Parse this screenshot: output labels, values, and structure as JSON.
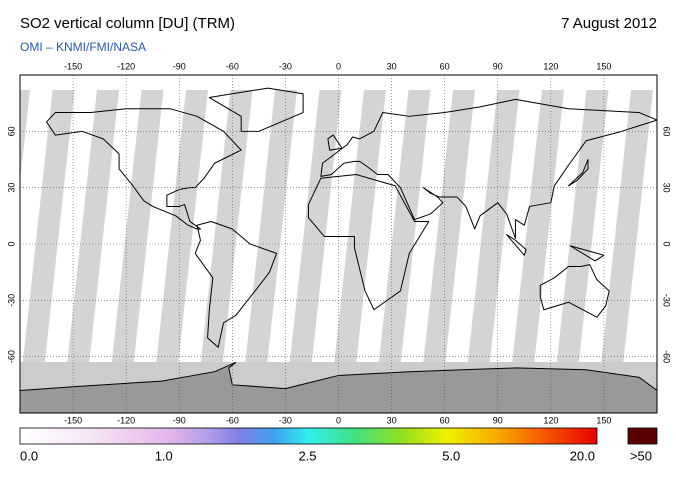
{
  "header": {
    "title": "SO2 vertical column [DU] (TRM)",
    "date": "7 August 2012",
    "subtitle": "OMI  –  KNMI/FMI/NASA"
  },
  "map": {
    "lonlim": [
      -180,
      180
    ],
    "latlim": [
      -90,
      90
    ],
    "lon_ticks": [
      -150,
      -120,
      -90,
      -60,
      -30,
      0,
      30,
      60,
      90,
      120,
      150
    ],
    "lat_ticks": [
      -60,
      -30,
      0,
      30,
      60
    ]
  },
  "colorbar": {
    "labels": [
      "0.0",
      "1.0",
      "2.5",
      "5.0",
      "20.0"
    ],
    "overflow_label": ">50"
  }
}
